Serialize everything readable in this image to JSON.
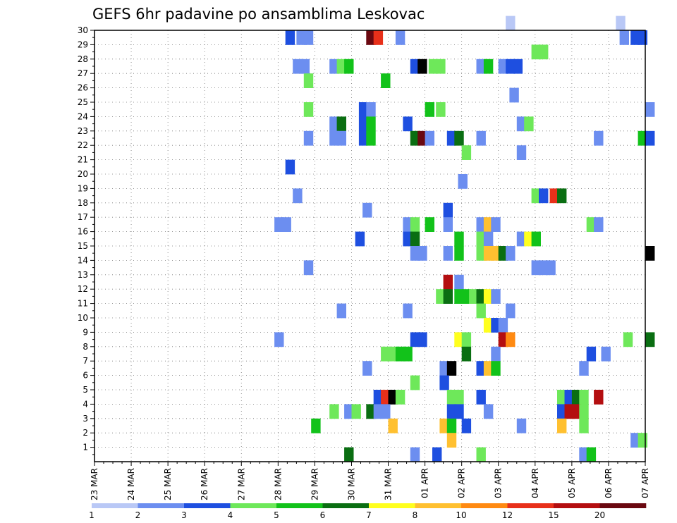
{
  "chart_data": {
    "type": "heatmap",
    "title": "GEFS 6hr padavine po ansamblima Leskovac",
    "xlabel": "",
    "ylabel": "",
    "x_tick_labels": [
      "23 MAR",
      "24 MAR",
      "25 MAR",
      "26 MAR",
      "27 MAR",
      "28 MAR",
      "29 MAR",
      "30 MAR",
      "31 MAR",
      "01 APR",
      "02 APR",
      "03 APR",
      "04 APR",
      "05 APR",
      "06 APR",
      "07 APR"
    ],
    "y_tick_labels": [
      "1",
      "2",
      "3",
      "4",
      "5",
      "6",
      "7",
      "8",
      "9",
      "10",
      "11",
      "12",
      "13",
      "14",
      "15",
      "16",
      "17",
      "18",
      "19",
      "20",
      "21",
      "22",
      "23",
      "24",
      "25",
      "26",
      "27",
      "28",
      "29",
      "30"
    ],
    "x_range_days": [
      0,
      15
    ],
    "y_range": [
      0,
      30
    ],
    "grid": true,
    "legend": {
      "placement": "bottom",
      "labels": [
        "1",
        "2",
        "3",
        "4",
        "5",
        "6",
        "7",
        "8",
        "10",
        "12",
        "15",
        "20"
      ],
      "colors": [
        "#b9c8f6",
        "#6c8ef0",
        "#1e4fe0",
        "#6ee85a",
        "#12c21a",
        "#0a6e12",
        "#ffff1e",
        "#ffc030",
        "#ff8a12",
        "#e8301a",
        "#b40e10",
        "#6a0810"
      ]
    },
    "cells": [
      [
        0,
        30,
        11.2
      ],
      [
        0,
        30,
        14.2
      ],
      [
        2,
        29,
        5.2
      ],
      [
        1,
        29,
        5.5
      ],
      [
        1,
        29,
        5.7
      ],
      [
        11,
        29,
        7.4
      ],
      [
        9,
        29,
        7.6
      ],
      [
        1,
        29,
        8.2
      ],
      [
        1,
        29,
        14.3
      ],
      [
        2,
        29,
        14.6
      ],
      [
        2,
        29,
        14.8
      ],
      [
        3,
        28,
        11.9
      ],
      [
        3,
        28,
        12.1
      ],
      [
        1,
        27,
        5.4
      ],
      [
        1,
        27,
        5.6
      ],
      [
        1,
        27,
        6.4
      ],
      [
        3,
        27,
        6.6
      ],
      [
        4,
        27,
        6.8
      ],
      [
        2,
        27,
        8.6
      ],
      [
        12,
        27,
        8.8
      ],
      [
        3,
        27,
        9.1
      ],
      [
        3,
        27,
        9.3
      ],
      [
        1,
        27,
        10.4
      ],
      [
        4,
        27,
        10.6
      ],
      [
        1,
        27,
        11.0
      ],
      [
        2,
        27,
        11.2
      ],
      [
        2,
        27,
        11.4
      ],
      [
        3,
        26,
        5.7
      ],
      [
        4,
        26,
        7.8
      ],
      [
        1,
        25,
        11.3
      ],
      [
        3,
        24,
        5.7
      ],
      [
        2,
        24,
        7.2
      ],
      [
        1,
        24,
        7.4
      ],
      [
        4,
        24,
        9.0
      ],
      [
        3,
        24,
        9.3
      ],
      [
        1,
        24,
        15.0
      ],
      [
        1,
        23,
        6.4
      ],
      [
        5,
        23,
        6.6
      ],
      [
        2,
        23,
        7.2
      ],
      [
        4,
        23,
        7.4
      ],
      [
        2,
        23,
        8.4
      ],
      [
        1,
        23,
        11.5
      ],
      [
        3,
        23,
        11.7
      ],
      [
        1,
        22,
        5.7
      ],
      [
        1,
        22,
        6.4
      ],
      [
        1,
        22,
        6.6
      ],
      [
        2,
        22,
        7.2
      ],
      [
        4,
        22,
        7.4
      ],
      [
        5,
        22,
        8.6
      ],
      [
        11,
        22,
        8.8
      ],
      [
        1,
        22,
        9.0
      ],
      [
        2,
        22,
        9.6
      ],
      [
        5,
        22,
        9.8
      ],
      [
        1,
        22,
        10.4
      ],
      [
        1,
        22,
        13.6
      ],
      [
        4,
        22,
        14.8
      ],
      [
        2,
        22,
        15.0
      ],
      [
        3,
        21,
        10.0
      ],
      [
        1,
        21,
        11.5
      ],
      [
        2,
        20,
        5.2
      ],
      [
        1,
        19,
        9.9
      ],
      [
        1,
        18,
        5.4
      ],
      [
        3,
        18,
        11.9
      ],
      [
        2,
        18,
        12.1
      ],
      [
        9,
        18,
        12.4
      ],
      [
        5,
        18,
        12.6
      ],
      [
        1,
        17,
        7.3
      ],
      [
        2,
        17,
        9.5
      ],
      [
        1,
        16,
        4.9
      ],
      [
        1,
        16,
        5.1
      ],
      [
        1,
        16,
        8.4
      ],
      [
        3,
        16,
        8.6
      ],
      [
        4,
        16,
        9.0
      ],
      [
        1,
        16,
        9.5
      ],
      [
        1,
        16,
        10.4
      ],
      [
        7,
        16,
        10.6
      ],
      [
        1,
        16,
        10.8
      ],
      [
        3,
        16,
        13.4
      ],
      [
        1,
        16,
        13.6
      ],
      [
        2,
        15,
        7.1
      ],
      [
        2,
        15,
        8.4
      ],
      [
        5,
        15,
        8.6
      ],
      [
        4,
        15,
        9.8
      ],
      [
        3,
        15,
        10.4
      ],
      [
        1,
        15,
        10.6
      ],
      [
        1,
        15,
        11.5
      ],
      [
        6,
        15,
        11.7
      ],
      [
        4,
        15,
        11.9
      ],
      [
        1,
        14,
        8.6
      ],
      [
        1,
        14,
        8.8
      ],
      [
        1,
        14,
        9.5
      ],
      [
        4,
        14,
        9.8
      ],
      [
        3,
        14,
        10.4
      ],
      [
        7,
        14,
        10.6
      ],
      [
        7,
        14,
        10.8
      ],
      [
        5,
        14,
        11.0
      ],
      [
        1,
        14,
        11.2
      ],
      [
        15,
        14,
        15.0
      ],
      [
        1,
        13,
        5.7
      ],
      [
        1,
        13,
        11.9
      ],
      [
        1,
        13,
        12.1
      ],
      [
        1,
        13,
        12.3
      ],
      [
        10,
        12,
        9.5
      ],
      [
        1,
        12,
        9.8
      ],
      [
        3,
        11,
        9.3
      ],
      [
        5,
        11,
        9.5
      ],
      [
        4,
        11,
        9.8
      ],
      [
        4,
        11,
        10.0
      ],
      [
        3,
        11,
        10.2
      ],
      [
        5,
        11,
        10.4
      ],
      [
        6,
        11,
        10.6
      ],
      [
        1,
        11,
        10.8
      ],
      [
        1,
        10,
        6.6
      ],
      [
        1,
        10,
        8.4
      ],
      [
        3,
        10,
        10.4
      ],
      [
        1,
        10,
        11.2
      ],
      [
        6,
        9,
        10.6
      ],
      [
        2,
        9,
        10.8
      ],
      [
        1,
        9,
        11.0
      ],
      [
        1,
        8,
        4.9
      ],
      [
        2,
        8,
        8.6
      ],
      [
        2,
        8,
        8.8
      ],
      [
        6,
        8,
        9.8
      ],
      [
        3,
        8,
        10.0
      ],
      [
        10,
        8,
        11.0
      ],
      [
        8,
        8,
        11.2
      ],
      [
        3,
        8,
        14.4
      ],
      [
        5,
        8,
        15.0
      ],
      [
        3,
        7,
        7.8
      ],
      [
        3,
        7,
        8.0
      ],
      [
        4,
        7,
        8.2
      ],
      [
        4,
        7,
        8.4
      ],
      [
        5,
        7,
        10.0
      ],
      [
        1,
        7,
        10.8
      ],
      [
        2,
        7,
        13.4
      ],
      [
        1,
        7,
        13.8
      ],
      [
        1,
        6,
        7.3
      ],
      [
        1,
        6,
        9.4
      ],
      [
        12,
        6,
        9.6
      ],
      [
        2,
        6,
        10.4
      ],
      [
        7,
        6,
        10.6
      ],
      [
        4,
        6,
        10.8
      ],
      [
        1,
        6,
        13.2
      ],
      [
        3,
        5,
        8.6
      ],
      [
        2,
        5,
        9.4
      ],
      [
        2,
        4,
        7.6
      ],
      [
        9,
        4,
        7.8
      ],
      [
        12,
        4,
        8.0
      ],
      [
        3,
        4,
        8.2
      ],
      [
        3,
        4,
        9.6
      ],
      [
        3,
        4,
        9.8
      ],
      [
        2,
        4,
        10.4
      ],
      [
        3,
        4,
        12.6
      ],
      [
        2,
        4,
        12.8
      ],
      [
        5,
        4,
        13.0
      ],
      [
        3,
        4,
        13.2
      ],
      [
        10,
        4,
        13.6
      ],
      [
        3,
        3,
        6.4
      ],
      [
        1,
        3,
        6.8
      ],
      [
        3,
        3,
        7.0
      ],
      [
        5,
        3,
        7.4
      ],
      [
        1,
        3,
        7.6
      ],
      [
        1,
        3,
        7.8
      ],
      [
        2,
        3,
        9.6
      ],
      [
        2,
        3,
        9.8
      ],
      [
        1,
        3,
        10.6
      ],
      [
        2,
        3,
        12.6
      ],
      [
        10,
        3,
        12.8
      ],
      [
        10,
        3,
        13.0
      ],
      [
        3,
        3,
        13.2
      ],
      [
        4,
        2,
        5.9
      ],
      [
        7,
        2,
        8.0
      ],
      [
        7,
        2,
        9.4
      ],
      [
        4,
        2,
        9.6
      ],
      [
        2,
        2,
        10.0
      ],
      [
        1,
        2,
        11.5
      ],
      [
        7,
        2,
        12.6
      ],
      [
        3,
        2,
        13.2
      ],
      [
        7,
        1,
        9.6
      ],
      [
        1,
        1,
        14.6
      ],
      [
        3,
        1,
        14.8
      ],
      [
        5,
        0,
        6.8
      ],
      [
        1,
        0,
        8.6
      ],
      [
        2,
        0,
        9.2
      ],
      [
        3,
        0,
        10.4
      ],
      [
        1,
        0,
        13.2
      ],
      [
        4,
        0,
        13.4
      ]
    ]
  }
}
